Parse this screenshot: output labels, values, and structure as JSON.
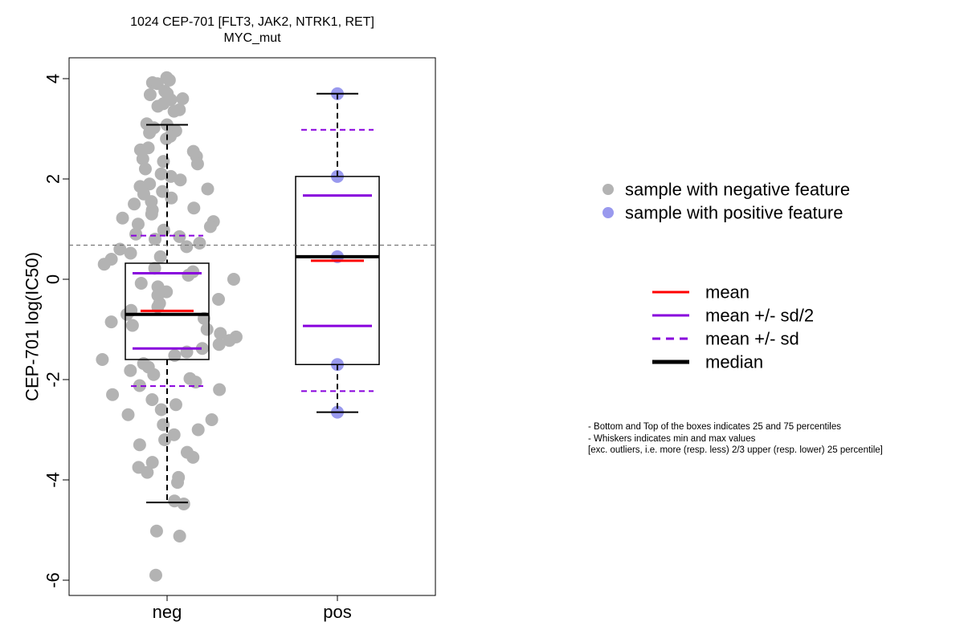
{
  "chart_data": {
    "type": "box-scatter",
    "title": "1024 CEP-701 [FLT3, JAK2, NTRK1, RET]",
    "subtitle": "MYC_mut",
    "ylabel": "CEP-701 log(IC50)",
    "xlabel": "",
    "ylim": [
      -6.3,
      4.4
    ],
    "yticks": [
      "4",
      "2",
      "0",
      "-2",
      "-4",
      "-6"
    ],
    "ytick_values": [
      4,
      2,
      0,
      -2,
      -4,
      -6
    ],
    "categories": [
      "neg",
      "pos"
    ],
    "reference_line": 0.68,
    "groups": [
      {
        "name": "neg",
        "point_color": "#b3b3b3",
        "box": {
          "q1": -1.6,
          "q3": 0.32,
          "median": -0.7,
          "whisker_low": -4.45,
          "whisker_high": 3.08
        },
        "mean": -0.63,
        "mean_minus_half_sd": -1.38,
        "mean_plus_half_sd": 0.12,
        "mean_minus_sd": -2.13,
        "mean_plus_sd": 0.87,
        "points": [
          4.02,
          3.97,
          3.92,
          3.9,
          3.75,
          3.7,
          3.68,
          3.6,
          3.58,
          3.5,
          3.45,
          3.38,
          3.35,
          3.1,
          3.08,
          3.02,
          2.96,
          2.92,
          2.85,
          2.8,
          2.62,
          2.58,
          2.55,
          2.45,
          2.4,
          2.35,
          2.3,
          2.2,
          2.1,
          2.05,
          1.98,
          1.9,
          1.85,
          1.8,
          1.75,
          1.7,
          1.62,
          1.55,
          1.5,
          1.42,
          1.38,
          1.3,
          1.22,
          1.15,
          1.1,
          1.05,
          0.98,
          0.9,
          0.85,
          0.8,
          0.72,
          0.65,
          0.6,
          0.52,
          0.45,
          0.4,
          0.3,
          0.22,
          0.15,
          0.08,
          0.0,
          -0.08,
          -0.15,
          -0.25,
          -0.32,
          -0.4,
          -0.48,
          -0.55,
          -0.62,
          -0.7,
          -0.78,
          -0.85,
          -0.92,
          -1.0,
          -1.08,
          -1.15,
          -1.22,
          -1.3,
          -1.38,
          -1.45,
          -1.52,
          -1.6,
          -1.68,
          -1.75,
          -1.82,
          -1.9,
          -1.98,
          -2.05,
          -2.12,
          -2.2,
          -2.3,
          -2.4,
          -2.5,
          -2.6,
          -2.7,
          -2.8,
          -2.9,
          -3.0,
          -3.1,
          -3.2,
          -3.3,
          -3.45,
          -3.55,
          -3.65,
          -3.75,
          -3.85,
          -3.95,
          -4.05,
          -4.42,
          -4.48,
          -5.02,
          -5.12,
          -5.9
        ]
      },
      {
        "name": "pos",
        "point_color": "#9999ee",
        "box": {
          "q1": -1.7,
          "q3": 2.05,
          "median": 0.45,
          "whisker_low": -2.65,
          "whisker_high": 3.7
        },
        "mean": 0.37,
        "mean_minus_half_sd": -0.93,
        "mean_plus_half_sd": 1.67,
        "mean_minus_sd": -2.23,
        "mean_plus_sd": 2.98,
        "points": [
          3.7,
          2.05,
          0.45,
          -1.7,
          -2.65
        ]
      }
    ],
    "legend_points": [
      {
        "label": "sample with negative feature",
        "color": "#b3b3b3"
      },
      {
        "label": "sample with positive feature",
        "color": "#9999ee"
      }
    ],
    "legend_lines": [
      {
        "label": "mean",
        "color": "#ff0000",
        "style": "solid"
      },
      {
        "label": "mean +/- sd/2",
        "color": "#8800dd",
        "style": "solid"
      },
      {
        "label": "mean +/- sd",
        "color": "#8800dd",
        "style": "dashed"
      },
      {
        "label": "median",
        "color": "#000000",
        "style": "bold"
      }
    ],
    "notes": [
      "- Bottom and Top of the boxes indicates 25 and 75 percentiles",
      "- Whiskers indicates min and max values",
      "[exc. outliers, i.e. more (resp. less) 2/3 upper (resp. lower) 25 percentile]"
    ]
  }
}
